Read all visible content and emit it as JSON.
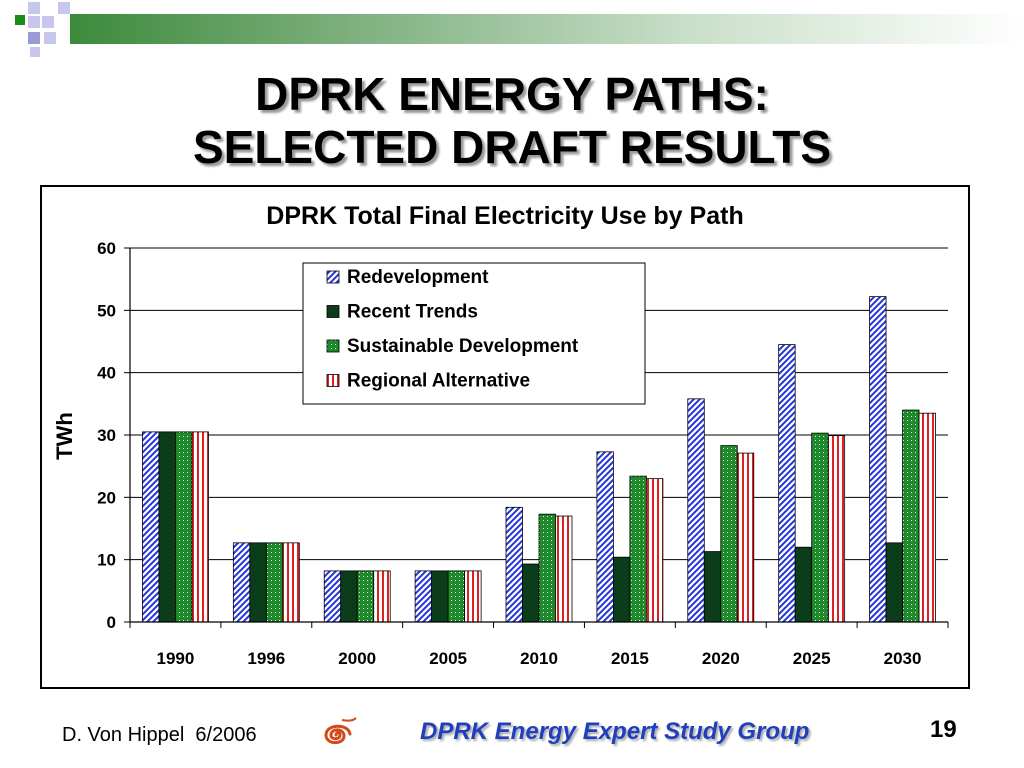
{
  "slide": {
    "title_line1": "DPRK ENERGY PATHS:",
    "title_line2": "SELECTED DRAFT RESULTS",
    "footer_author": "D. Von Hippel  6/2006",
    "footer_group": "DPRK Energy Expert Study Group",
    "slide_number": "19"
  },
  "colors": {
    "redevelopment": "#2233dd",
    "recent_trends": "#0b3d1a",
    "sustainable_development": "#1e8a2c",
    "regional_alternative": "#dd2222"
  },
  "chart_data": {
    "type": "bar",
    "title": "DPRK Total Final Electricity Use by Path",
    "xlabel": "",
    "ylabel": "TWh",
    "ylim": [
      0,
      60
    ],
    "yticks": [
      "0",
      "10",
      "20",
      "30",
      "40",
      "50",
      "60"
    ],
    "grid": true,
    "legend_position": "top-center",
    "categories": [
      "1990",
      "1996",
      "2000",
      "2005",
      "2010",
      "2015",
      "2020",
      "2025",
      "2030"
    ],
    "series": [
      {
        "name": "Redevelopment",
        "values": [
          30.5,
          12.7,
          8.2,
          8.2,
          18.4,
          27.3,
          35.8,
          44.5,
          52.2
        ]
      },
      {
        "name": "Recent Trends",
        "values": [
          30.5,
          12.7,
          8.2,
          8.2,
          9.3,
          10.4,
          11.3,
          12.0,
          12.7
        ]
      },
      {
        "name": "Sustainable Development",
        "values": [
          30.5,
          12.7,
          8.2,
          8.2,
          17.3,
          23.4,
          28.3,
          30.3,
          34.0
        ]
      },
      {
        "name": "Regional Alternative",
        "values": [
          30.5,
          12.7,
          8.2,
          8.2,
          17.0,
          23.0,
          27.1,
          29.9,
          33.5
        ]
      }
    ]
  }
}
